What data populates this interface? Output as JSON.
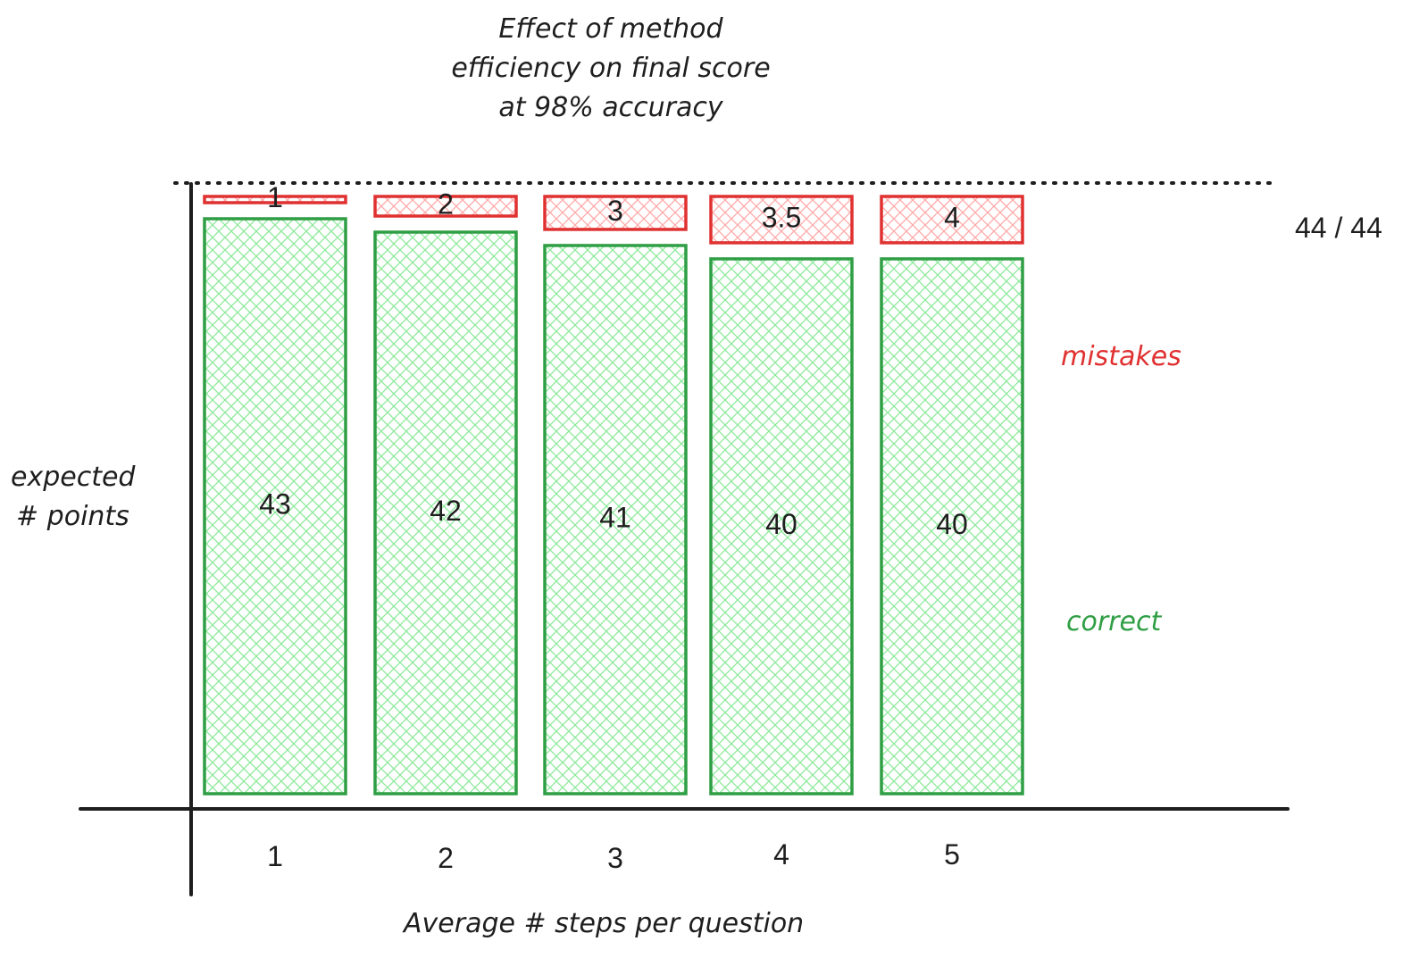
{
  "chart_data": {
    "type": "bar",
    "stacked": true,
    "title_lines": [
      "Effect of method",
      "efficiency on final score",
      "at 98% accuracy"
    ],
    "xlabel": "Average # steps per question",
    "ylabel_lines": [
      "expected",
      "# points"
    ],
    "categories": [
      "1",
      "2",
      "3",
      "4",
      "5"
    ],
    "max_label": "44 / 44",
    "max_value": 44,
    "series": [
      {
        "name": "correct",
        "color": "#2f9e44",
        "fill": "#b2f2bb",
        "values": [
          43,
          42,
          41,
          40,
          40
        ],
        "labels": [
          "43",
          "42",
          "41",
          "40",
          "40"
        ]
      },
      {
        "name": "mistakes",
        "color": "#e03131",
        "fill": "#ffc9c9",
        "values": [
          1,
          2,
          3,
          3.5,
          4
        ],
        "labels": [
          "1",
          "2",
          "3",
          "3.5",
          "4"
        ]
      }
    ],
    "grid": false,
    "legend_placement": "right"
  }
}
